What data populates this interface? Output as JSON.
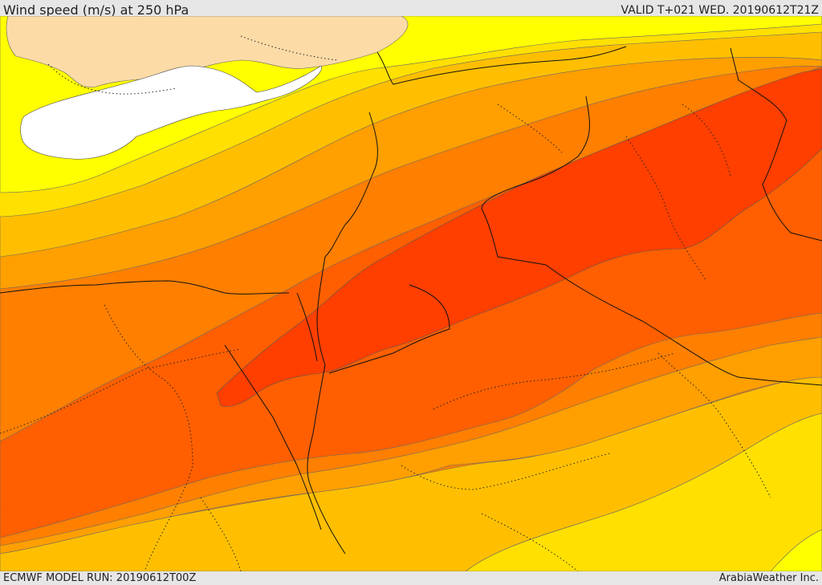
{
  "header": {
    "title": "Wind speed (m/s) at 250 hPa",
    "valid": "VALID T+021 WED. 20190612T21Z"
  },
  "footer": {
    "model_run": "ECMWF MODEL RUN: 20190612T00Z",
    "credit": "ArabiaWeather Inc."
  },
  "colors": {
    "background_band": "#ffffff",
    "light_beige": "#fddba7",
    "yellow": "#ffff00",
    "yellow_orange": "#ffe000",
    "light_orange": "#ffbf00",
    "orange": "#ff9f00",
    "dark_orange": "#ff7f00",
    "red_orange": "#ff5f00",
    "red": "#ff3f00"
  }
}
